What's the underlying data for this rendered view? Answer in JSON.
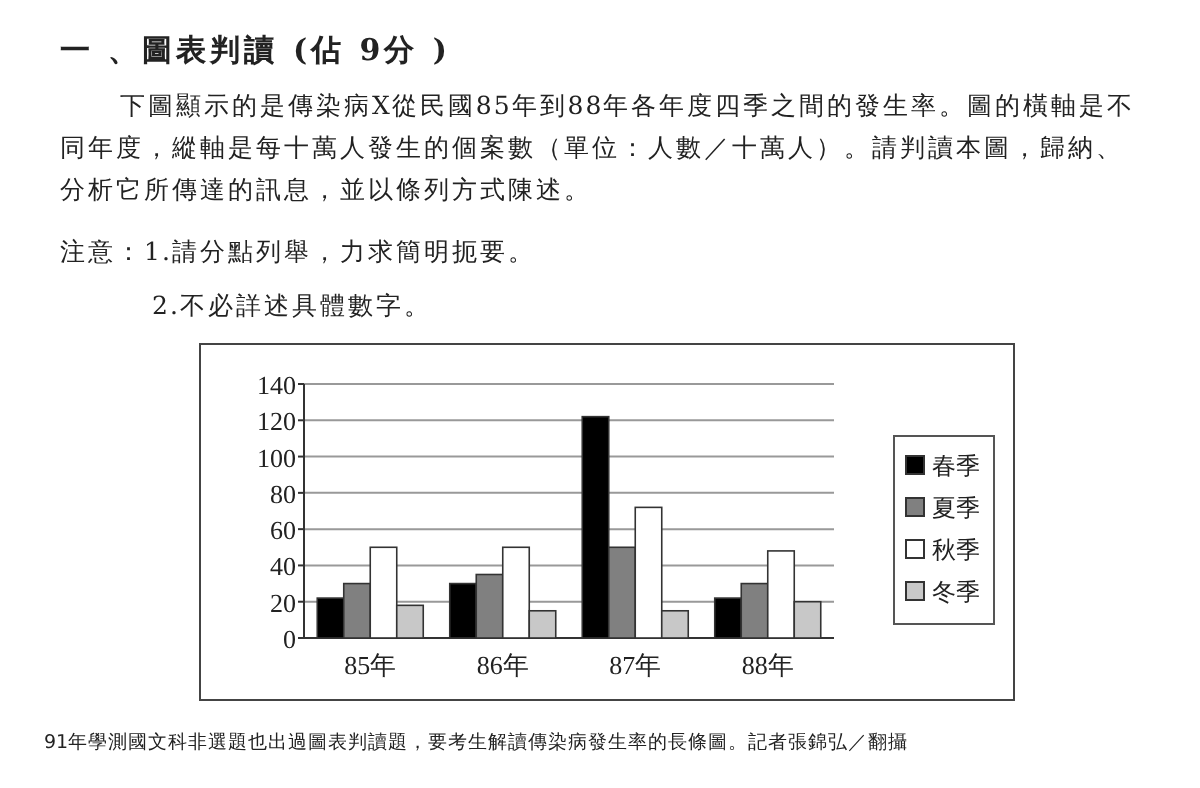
{
  "chart_data": {
    "type": "bar",
    "title": "一 、圖表判讀 (佔 9分 )",
    "subtitle": "下圖顯示的是傳染病X從民國85年到88年各年度四季之間的發生率。圖的橫軸是不同年度，縱軸是每十萬人發生的個案數（單位：人數／十萬人）。請判讀本圖，歸納、分析它所傳達的訊息，並以條列方式陳述。",
    "annotations": [
      "注意：1.請分點列舉，力求簡明扼要。",
      "2.不必詳述具體數字。",
      "91年學測國文科非選題也出過圖表判讀題，要考生解讀傳染病發生率的長條圖。記者張錦弘／翻攝"
    ],
    "categories": [
      "85年",
      "86年",
      "87年",
      "88年"
    ],
    "series": [
      {
        "name": "春季",
        "color": "#000000",
        "values": [
          22,
          30,
          122,
          22
        ]
      },
      {
        "name": "夏季",
        "color": "#808080",
        "values": [
          30,
          35,
          50,
          30
        ]
      },
      {
        "name": "秋季",
        "color": "#ffffff",
        "values": [
          50,
          50,
          72,
          48
        ]
      },
      {
        "name": "冬季",
        "color": "#c8c8c8",
        "values": [
          18,
          15,
          15,
          20
        ]
      }
    ],
    "ylim": [
      0,
      140
    ],
    "yticks": [
      0,
      20,
      40,
      60,
      80,
      100,
      120,
      140
    ],
    "grid": "y",
    "legend": "right"
  }
}
